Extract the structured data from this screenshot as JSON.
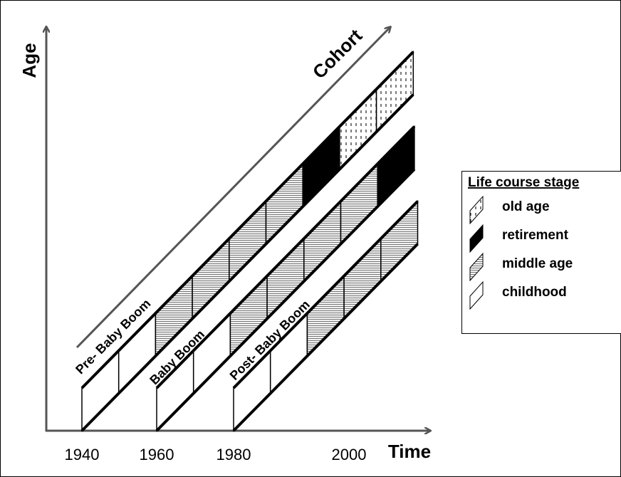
{
  "axes": {
    "y_label": "Age",
    "x_label": "Time",
    "diagonal_label": "Cohort",
    "x_ticks": [
      "1940",
      "1960",
      "1980",
      "2000"
    ]
  },
  "cohorts": [
    {
      "label": "Pre- Baby Boom"
    },
    {
      "label": "Baby Boom"
    },
    {
      "label": "Post- Baby Boom"
    }
  ],
  "legend": {
    "title": "Life course stage",
    "items": [
      {
        "label": "old age"
      },
      {
        "label": "retirement"
      },
      {
        "label": "middle age"
      },
      {
        "label": "childhood"
      }
    ]
  }
}
